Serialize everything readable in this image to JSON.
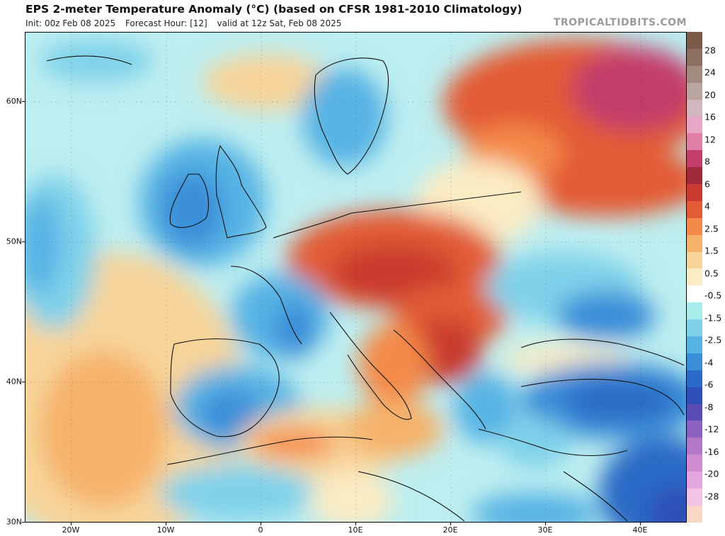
{
  "header": {
    "title": "EPS 2-meter Temperature Anomaly (°C) (based on CFSR 1981-2010 Climatology)",
    "init": "Init: 00z Feb 08 2025",
    "forecast_hour": "Forecast Hour: [12]",
    "valid": "valid at 12z Sat, Feb 08 2025",
    "credit": "TROPICALTIDBITS.COM"
  },
  "map": {
    "region": "Europe",
    "lat_labels": [
      "60N",
      "50N",
      "40N",
      "30N"
    ],
    "lon_labels": [
      "20W",
      "10W",
      "0",
      "10E",
      "20E",
      "30E",
      "40E"
    ]
  },
  "colorbar": {
    "labels": [
      "28",
      "24",
      "20",
      "16",
      "12",
      "8",
      "6",
      "4",
      "2.5",
      "1.5",
      "0.5",
      "-0.5",
      "-1.5",
      "-2.5",
      "-4",
      "-6",
      "-8",
      "-12",
      "-16",
      "-20",
      "-28"
    ],
    "colors": [
      "#7a5a48",
      "#8c6f60",
      "#a38a80",
      "#b9a4a0",
      "#cfb7bd",
      "#e7a6c4",
      "#e07fa6",
      "#c33e6a",
      "#a0293a",
      "#c93b2e",
      "#e35b34",
      "#f48a4a",
      "#f6b26b",
      "#f7d49a",
      "#fbecc4",
      "#ffffff",
      "#a9ecec",
      "#7fd2ea",
      "#56b3e4",
      "#3a8ed8",
      "#2b6ac6",
      "#2f4fb6",
      "#5a4db3",
      "#8a62c1",
      "#b379c9",
      "#cf8ccf",
      "#e3a6df",
      "#f3c3e6",
      "#f7d6c6"
    ]
  }
}
